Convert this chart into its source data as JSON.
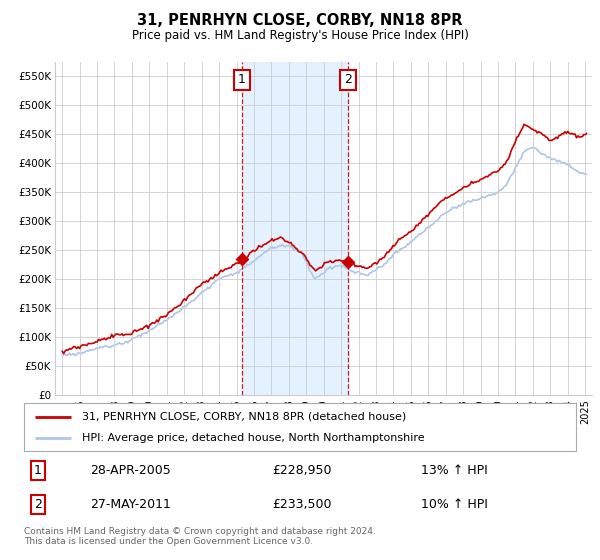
{
  "title": "31, PENRHYN CLOSE, CORBY, NN18 8PR",
  "subtitle": "Price paid vs. HM Land Registry's House Price Index (HPI)",
  "ylabel_ticks": [
    "£0",
    "£50K",
    "£100K",
    "£150K",
    "£200K",
    "£250K",
    "£300K",
    "£350K",
    "£400K",
    "£450K",
    "£500K",
    "£550K"
  ],
  "ytick_values": [
    0,
    50000,
    100000,
    150000,
    200000,
    250000,
    300000,
    350000,
    400000,
    450000,
    500000,
    550000
  ],
  "ylim": [
    0,
    575000
  ],
  "legend_line1": "31, PENRHYN CLOSE, CORBY, NN18 8PR (detached house)",
  "legend_line2": "HPI: Average price, detached house, North Northamptonshire",
  "sale1_date": "28-APR-2005",
  "sale1_price": "£228,950",
  "sale1_hpi": "13% ↑ HPI",
  "sale2_date": "27-MAY-2011",
  "sale2_price": "£233,500",
  "sale2_hpi": "10% ↑ HPI",
  "footer": "Contains HM Land Registry data © Crown copyright and database right 2024.\nThis data is licensed under the Open Government Licence v3.0.",
  "hpi_color": "#aec6e8",
  "price_color": "#cc0000",
  "sale1_year": 2005.32,
  "sale2_year": 2011.4,
  "background_color": "#ffffff",
  "grid_color": "#cccccc",
  "shade_color": "#deeeff"
}
